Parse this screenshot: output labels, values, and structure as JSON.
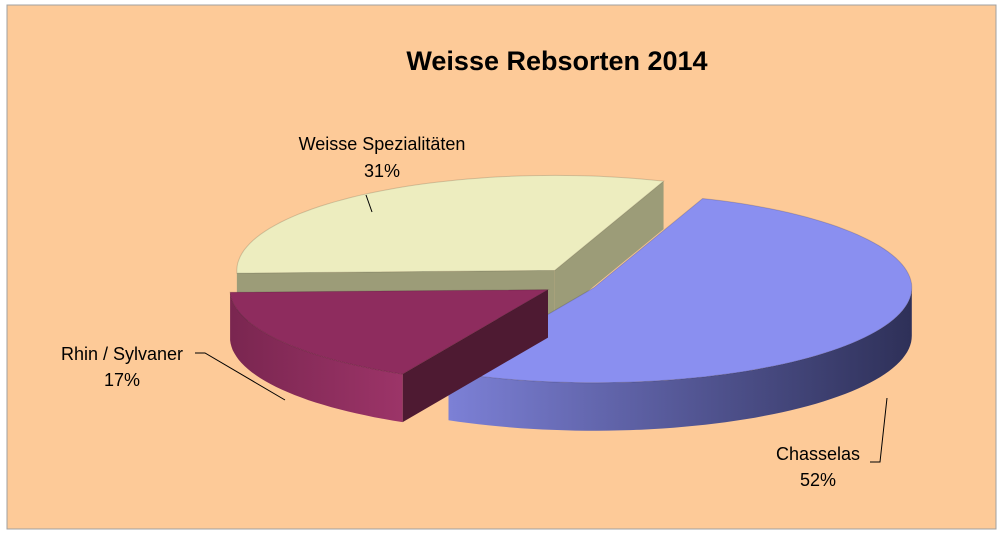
{
  "chart_data": {
    "type": "pie",
    "title": "Weisse Rebsorten 2014",
    "categories": [
      "Chasselas",
      "Rhin / Sylvaner",
      "Weisse Spezialitäten"
    ],
    "values": [
      52,
      17,
      31
    ],
    "value_labels": [
      "52%",
      "17%",
      "31%"
    ],
    "colors": [
      "#8a8ff0",
      "#8e2c5e",
      "#ededbf"
    ]
  }
}
